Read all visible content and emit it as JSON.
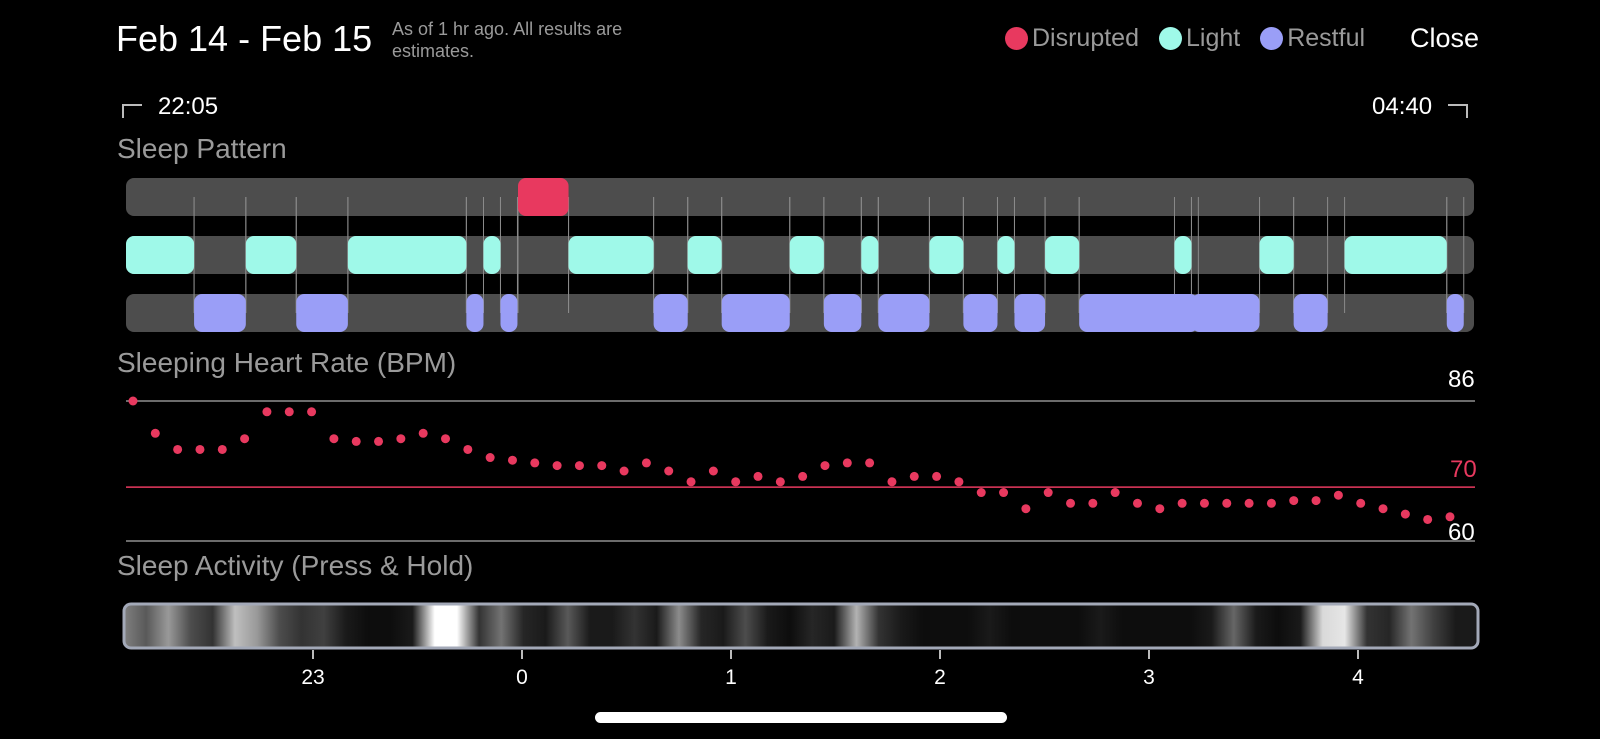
{
  "header": {
    "date_range": "Feb 14 - Feb 15",
    "as_of": "As of 1 hr ago. All results are estimates.",
    "close_label": "Close"
  },
  "legend": [
    {
      "label": "Disrupted",
      "color": "#e8395f"
    },
    {
      "label": "Light",
      "color": "#9ff9e9"
    },
    {
      "label": "Restful",
      "color": "#9a9ef7"
    }
  ],
  "time_range": {
    "start": "22:05",
    "end": "04:40"
  },
  "sections": {
    "sleep_pattern": "Sleep Pattern",
    "heart_rate": "Sleeping Heart Rate (BPM)",
    "activity": "Sleep Activity (Press & Hold)"
  },
  "heart_rate_lines": {
    "max": "86",
    "avg": "70",
    "min": "60"
  },
  "activity_axis": [
    "23",
    "0",
    "1",
    "2",
    "3",
    "4"
  ],
  "chart_data": {
    "type": "scatter",
    "title": "Sleeping Heart Rate (BPM)",
    "ylim": [
      60,
      86
    ],
    "y_reference_lines": [
      86,
      70,
      60
    ],
    "x_range": [
      "22:05",
      "04:40"
    ],
    "points_y": [
      86,
      80,
      77,
      77,
      77,
      79,
      84,
      84,
      84,
      79,
      78.5,
      78.5,
      79,
      80,
      79,
      77,
      75.5,
      75,
      74.5,
      74,
      74,
      74,
      73,
      74.5,
      73,
      71,
      73,
      71,
      72,
      71,
      72,
      74,
      74.5,
      74.5,
      71,
      72,
      72,
      71,
      69,
      69,
      66,
      69,
      67,
      67,
      69,
      67,
      66,
      67,
      67,
      67,
      67,
      67,
      67.5,
      67.5,
      68.5,
      67,
      66,
      65,
      64,
      64.5
    ],
    "sleep_stages": {
      "disrupted": [
        [
          0.2908,
          0.3283
        ]
      ],
      "light": [
        [
          0,
          0.0505
        ],
        [
          0.0889,
          0.1263
        ],
        [
          0.1646,
          0.2525
        ],
        [
          0.2652,
          0.2778
        ],
        [
          0.3283,
          0.3914
        ],
        [
          0.4167,
          0.4419
        ],
        [
          0.4924,
          0.5177
        ],
        [
          0.5455,
          0.5581
        ],
        [
          0.596,
          0.6212
        ],
        [
          0.6465,
          0.6591
        ],
        [
          0.6818,
          0.7071
        ],
        [
          0.7778,
          0.7904
        ],
        [
          0.8409,
          0.8662
        ],
        [
          0.904,
          0.9798
        ]
      ],
      "restful": [
        [
          0.0505,
          0.0889
        ],
        [
          0.1263,
          0.1646
        ],
        [
          0.2525,
          0.2652
        ],
        [
          0.2778,
          0.2904
        ],
        [
          0.3914,
          0.4167
        ],
        [
          0.4419,
          0.4924
        ],
        [
          0.5177,
          0.5455
        ],
        [
          0.5581,
          0.596
        ],
        [
          0.6212,
          0.6465
        ],
        [
          0.6591,
          0.6818
        ],
        [
          0.7071,
          0.7955
        ],
        [
          0.7904,
          0.8409
        ],
        [
          0.8662,
          0.8914
        ],
        [
          0.9798,
          0.9924
        ]
      ]
    },
    "activity_levels": [
      0.5,
      0.35,
      0.6,
      0.3,
      0.2,
      0.75,
      0.6,
      0.3,
      0.2,
      0.25,
      0.1,
      0.05,
      0.05,
      0.1,
      1.0,
      1.0,
      0.2,
      0.45,
      0.15,
      0.1,
      0.35,
      0.1,
      0.1,
      0.2,
      0.1,
      0.55,
      0.15,
      0.1,
      0.3,
      0.1,
      0.05,
      0.15,
      0.1,
      0.7,
      0.2,
      0.1,
      0.05,
      0.05,
      0.05,
      0.1,
      0.05,
      0.05,
      0.05,
      0.05,
      0.1,
      0.05,
      0.05,
      0.05,
      0.05,
      0.1,
      0.4,
      0.1,
      0.05,
      0.1,
      0.85,
      0.9,
      0.2,
      0.15,
      0.45,
      0.25,
      0.1,
      0.1
    ]
  }
}
